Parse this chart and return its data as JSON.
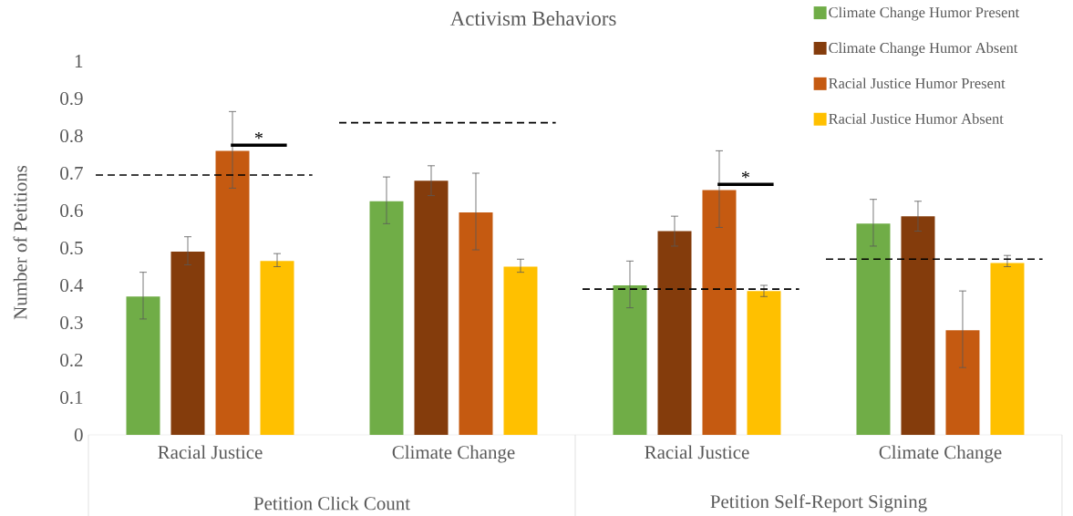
{
  "chart_data": {
    "type": "bar",
    "title": "Activism Behaviors",
    "ylabel": "Number of Petitions",
    "categories": [
      "Racial Justice",
      "Climate Change",
      "Racial Justice",
      "Climate Change"
    ],
    "series": [
      {
        "name": "Climate Change Humor Present",
        "color": "#70ad47",
        "values": [
          0.37,
          0.625,
          0.4,
          0.565
        ],
        "errors": [
          [
            0.31,
            0.435
          ],
          [
            0.565,
            0.69
          ],
          [
            0.34,
            0.465
          ],
          [
            0.505,
            0.63
          ]
        ]
      },
      {
        "name": "Climate Change Humor Absent",
        "color": "#843c0c",
        "values": [
          0.49,
          0.68,
          0.545,
          0.585
        ],
        "errors": [
          [
            0.455,
            0.53
          ],
          [
            0.64,
            0.72
          ],
          [
            0.505,
            0.585
          ],
          [
            0.545,
            0.625
          ]
        ]
      },
      {
        "name": "Racial Justice Humor Present",
        "color": "#c55a11",
        "values": [
          0.76,
          0.595,
          0.655,
          0.28
        ],
        "errors": [
          [
            0.66,
            0.865
          ],
          [
            0.495,
            0.7
          ],
          [
            0.555,
            0.76
          ],
          [
            0.18,
            0.385
          ]
        ]
      },
      {
        "name": "Racial Justice Humor Absent",
        "color": "#ffc000",
        "values": [
          0.465,
          0.45,
          0.385,
          0.46
        ],
        "errors": [
          [
            0.45,
            0.485
          ],
          [
            0.435,
            0.47
          ],
          [
            0.37,
            0.4
          ],
          [
            0.45,
            0.48
          ]
        ]
      }
    ],
    "ylim": [
      0,
      1
    ],
    "yticks": [
      0,
      0.1,
      0.2,
      0.3,
      0.4,
      0.5,
      0.6,
      0.7,
      0.8,
      0.9,
      1
    ],
    "ref_lines": [
      {
        "axis": "y",
        "value": 0.695,
        "line_style": "dashed",
        "color": "#000000"
      },
      {
        "axis": "y",
        "value": 0.835,
        "line_style": "dashed",
        "color": "#000000"
      },
      {
        "axis": "y",
        "value": 0.39,
        "line_style": "dashed",
        "color": "#000000"
      },
      {
        "axis": "y",
        "value": 0.47,
        "line_style": "dashed",
        "color": "#000000"
      }
    ],
    "annotations": [
      "*",
      "*",
      "Petition Click Count",
      "Petition Self-Report Signing"
    ],
    "legend": "top right"
  }
}
